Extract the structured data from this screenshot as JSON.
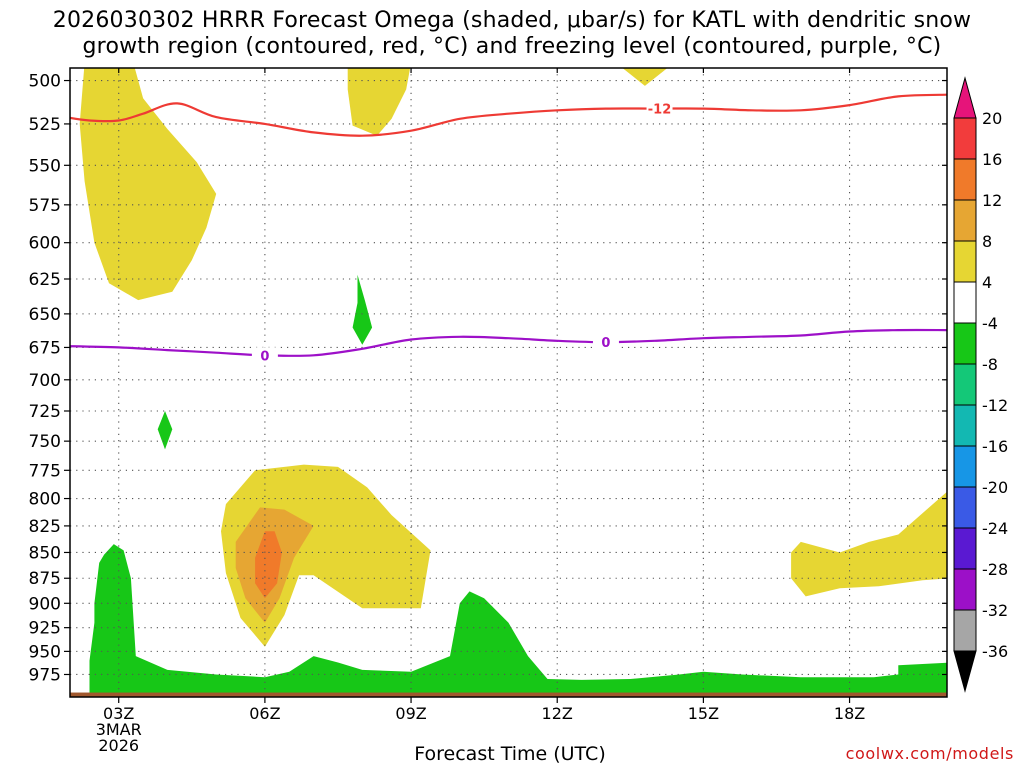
{
  "title": {
    "line1": "2026030302 HRRR Forecast Omega (shaded, μbar/s) for KATL with dendritic snow",
    "line2": "growth region (contoured, red, °C) and freezing level (contoured, purple, °C)"
  },
  "watermark": "coolwx.com/models",
  "chart_data": {
    "type": "heatmap",
    "xlabel": "Forecast Time (UTC)",
    "ylabel": "",
    "x_ticks": [
      {
        "hour": 3,
        "label": "03Z",
        "sublabels": [
          "3MAR",
          "2026"
        ]
      },
      {
        "hour": 6,
        "label": "06Z",
        "sublabels": []
      },
      {
        "hour": 9,
        "label": "09Z",
        "sublabels": []
      },
      {
        "hour": 12,
        "label": "12Z",
        "sublabels": []
      },
      {
        "hour": 15,
        "label": "15Z",
        "sublabels": []
      },
      {
        "hour": 18,
        "label": "18Z",
        "sublabels": []
      }
    ],
    "x_range_hours": [
      2.0,
      20.0
    ],
    "y_ticks": [
      500,
      525,
      550,
      575,
      600,
      625,
      650,
      675,
      700,
      725,
      750,
      775,
      800,
      825,
      850,
      875,
      900,
      925,
      950,
      975
    ],
    "y_range_hPa": [
      493,
      1000
    ],
    "y_scale": "log-pressure",
    "grid": true,
    "colorbar": {
      "labels": [
        "20",
        "16",
        "12",
        "8",
        "4",
        "-4",
        "-8",
        "-12",
        "-16",
        "-20",
        "-24",
        "-28",
        "-32",
        "-36"
      ],
      "colors": [
        "#f23c3c",
        "#f07a2a",
        "#e6a633",
        "#e6d633",
        "#ffffff",
        "#17c717",
        "#14c878",
        "#13b8b2",
        "#1796e6",
        "#3a5ae6",
        "#5a19d2",
        "#9c10c8",
        "#a6a6a6"
      ],
      "top_arrow_color": "#e6147a",
      "bottom_arrow_color": "#000000"
    },
    "contour_labels": {
      "dendritic": "-12",
      "freezing": "0"
    },
    "dendritic_minus12_line": [
      [
        1.9,
        521
      ],
      [
        2.4,
        523
      ],
      [
        3.0,
        523
      ],
      [
        3.5,
        519
      ],
      [
        4.2,
        513
      ],
      [
        5.0,
        521
      ],
      [
        6.0,
        525
      ],
      [
        7.0,
        530
      ],
      [
        8.0,
        532
      ],
      [
        9.0,
        529
      ],
      [
        10.0,
        522
      ],
      [
        11.0,
        519
      ],
      [
        12.0,
        517
      ],
      [
        13.0,
        516
      ],
      [
        14.0,
        516
      ],
      [
        15.0,
        516
      ],
      [
        16.0,
        517
      ],
      [
        17.0,
        517
      ],
      [
        18.0,
        514
      ],
      [
        19.0,
        509
      ],
      [
        20.0,
        508
      ]
    ],
    "freezing_0C_line": [
      [
        1.9,
        674
      ],
      [
        3.0,
        675
      ],
      [
        4.0,
        677
      ],
      [
        5.0,
        679
      ],
      [
        6.0,
        681
      ],
      [
        7.0,
        681
      ],
      [
        8.0,
        676
      ],
      [
        9.0,
        669
      ],
      [
        10.0,
        667
      ],
      [
        11.0,
        668
      ],
      [
        12.0,
        670
      ],
      [
        13.0,
        671
      ],
      [
        14.0,
        670
      ],
      [
        15.0,
        668
      ],
      [
        16.0,
        667
      ],
      [
        17.0,
        666
      ],
      [
        18.0,
        663
      ],
      [
        19.0,
        662
      ],
      [
        20.0,
        662
      ]
    ]
  }
}
